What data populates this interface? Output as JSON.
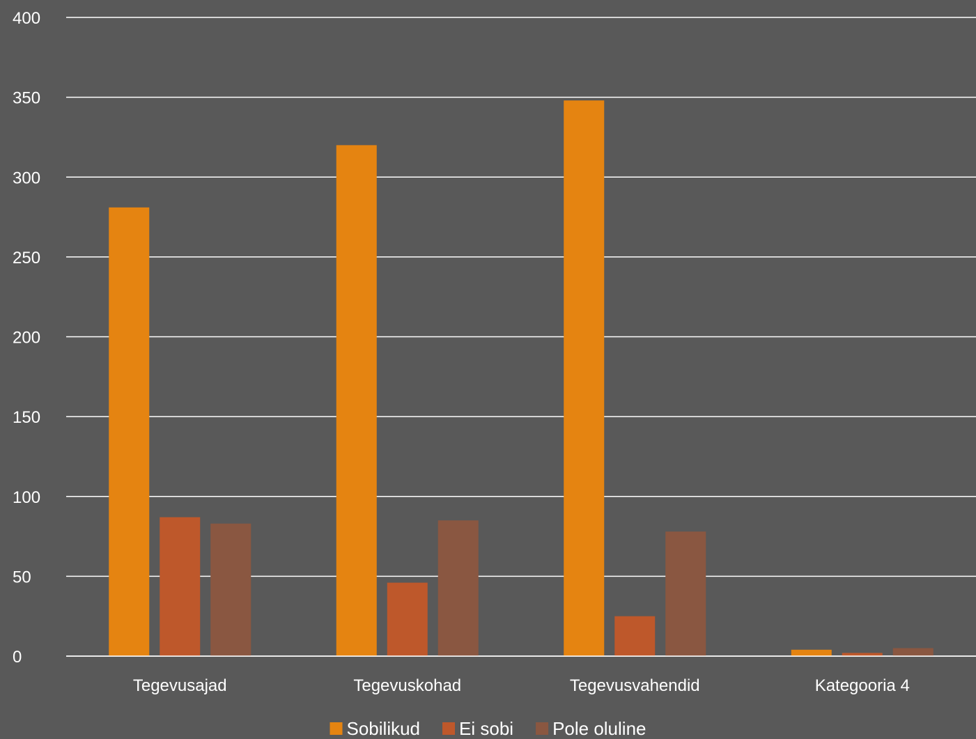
{
  "chart_data": {
    "type": "bar",
    "categories": [
      "Tegevusajad",
      "Tegevuskohad",
      "Tegevusvahendid",
      "Kategooria 4"
    ],
    "series": [
      {
        "name": "Sobilikud",
        "color": "#E58411",
        "values": [
          281,
          320,
          348,
          4
        ]
      },
      {
        "name": "Ei sobi",
        "color": "#BE582B",
        "values": [
          87,
          46,
          25,
          2
        ]
      },
      {
        "name": "Pole oluline",
        "color": "#8A5741",
        "values": [
          83,
          85,
          78,
          5
        ]
      }
    ],
    "yticks": [
      0,
      50,
      100,
      150,
      200,
      250,
      300,
      350,
      400
    ],
    "ylim": [
      0,
      400
    ],
    "grid": true,
    "legend_position": "bottom",
    "background": "#595959",
    "gridline_color": "#FFFFFF",
    "text_color": "#FFFFFF"
  }
}
